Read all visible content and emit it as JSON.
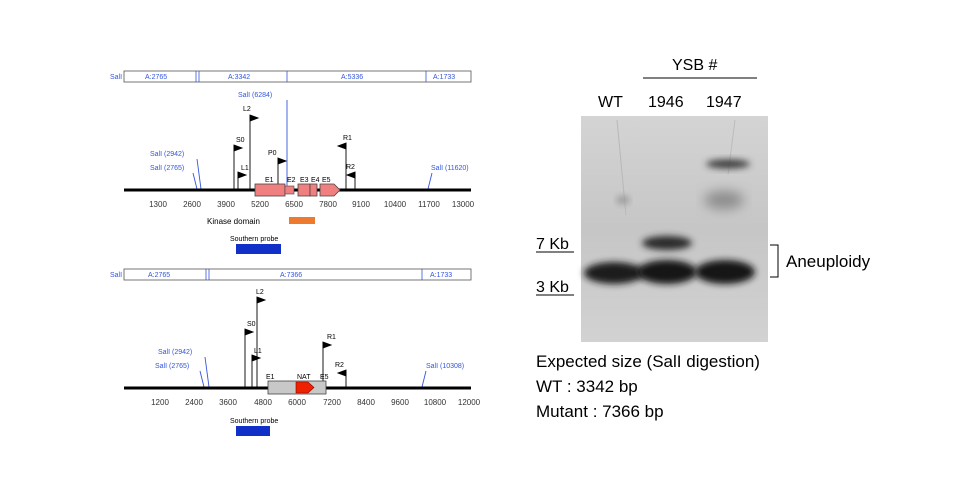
{
  "wt_locus": {
    "restriction_map": {
      "left_site": "SalI",
      "fragments": [
        "A:2765",
        "A:3342",
        "A:5336",
        "A:1733"
      ]
    },
    "sites": [
      "SalI (6284)",
      "SalI (2942)",
      "SalI (2765)",
      "SalI (11620)"
    ],
    "primers": [
      "L2",
      "S0",
      "P0",
      "L1",
      "R1",
      "R2"
    ],
    "exons": [
      "E1",
      "E2",
      "E3",
      "E4",
      "E5"
    ],
    "axis_ticks": [
      "1300",
      "2600",
      "3900",
      "5200",
      "6500",
      "7800",
      "9100",
      "10400",
      "11700",
      "13000"
    ],
    "kinase_label": "Kinase domain",
    "probe_label": "Southern probe"
  },
  "mutant_locus": {
    "restriction_map": {
      "left_site": "SalI",
      "fragments": [
        "A:2765",
        "A:7366",
        "A:1733"
      ]
    },
    "sites": [
      "SalI (2942)",
      "SalI (2765)",
      "SalI (10308)"
    ],
    "primers": [
      "L2",
      "S0",
      "L1",
      "R1",
      "R2"
    ],
    "exons": [
      "E1",
      "NAT",
      "E5"
    ],
    "axis_ticks": [
      "1200",
      "2400",
      "3600",
      "4800",
      "6000",
      "7200",
      "8400",
      "9600",
      "10800",
      "12000"
    ],
    "probe_label": "Southern probe"
  },
  "blot": {
    "group_label": "YSB #",
    "lanes": [
      "WT",
      "1946",
      "1947"
    ],
    "markers": [
      "7 Kb",
      "3 Kb"
    ],
    "annotation": "Aneuploidy",
    "caption": {
      "line1": "Expected size (SalI digestion)",
      "line2": "WT : 3342 bp",
      "line3": "Mutant : 7366 bp"
    }
  },
  "colors": {
    "site_blue": "#3355dd",
    "exon_pink": "#f08080",
    "kinase_orange": "#ee7a30",
    "probe_blue": "#1030c8",
    "nat_red": "#ee2200",
    "grey_box": "#c8c8c8"
  }
}
